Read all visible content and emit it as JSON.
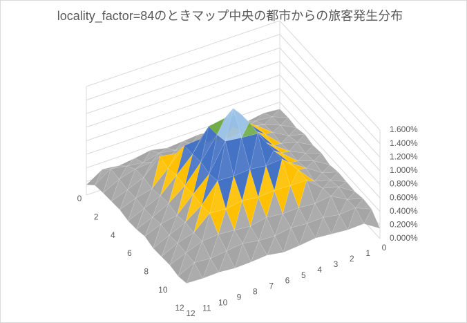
{
  "chart_data": {
    "type": "surface3d",
    "title": "locality_factor=84のときマップ中央の都市からの旅客発生分布",
    "row_labels": [
      0,
      null,
      2,
      null,
      4,
      null,
      6,
      null,
      8,
      null,
      10,
      null,
      12
    ],
    "col_labels": [
      0,
      1,
      2,
      3,
      4,
      5,
      6,
      7,
      8,
      9,
      10,
      11,
      12
    ],
    "zlim": [
      0,
      1.6
    ],
    "zticks": [
      {
        "value": 0,
        "label": "0.000%"
      },
      {
        "value": 0.2,
        "label": "0.200%"
      },
      {
        "value": 0.4,
        "label": "0.400%"
      },
      {
        "value": 0.6,
        "label": "0.600%"
      },
      {
        "value": 0.8,
        "label": "0.800%"
      },
      {
        "value": 1.0,
        "label": "1.000%"
      },
      {
        "value": 1.2,
        "label": "1.200%"
      },
      {
        "value": 1.4,
        "label": "1.400%"
      },
      {
        "value": 1.6,
        "label": "1.600%"
      }
    ],
    "band_colors": [
      "#ed7d31",
      "#a5a5a5",
      "#a5a5a5",
      "#ffc000",
      "#4472c4",
      "#4472c4",
      "#70ad47",
      "#9dc3e6"
    ],
    "values": [
      [
        0.3,
        0.32,
        0.28,
        0.35,
        0.3,
        0.33,
        0.31,
        0.29,
        0.34,
        0.3,
        0.27,
        0.3,
        0.15
      ],
      [
        0.31,
        0.4,
        0.42,
        0.38,
        0.45,
        0.4,
        0.41,
        0.39,
        0.43,
        0.37,
        0.4,
        0.44,
        0.28
      ],
      [
        0.29,
        0.41,
        0.5,
        0.55,
        0.48,
        0.52,
        0.5,
        0.53,
        0.47,
        0.51,
        0.49,
        0.42,
        0.3
      ],
      [
        0.33,
        0.39,
        0.52,
        0.7,
        0.72,
        0.68,
        0.7,
        0.71,
        0.69,
        0.73,
        0.5,
        0.4,
        0.31
      ],
      [
        0.3,
        0.43,
        0.49,
        0.71,
        0.95,
        0.97,
        0.93,
        0.96,
        0.94,
        0.69,
        0.47,
        0.41,
        0.32
      ],
      [
        0.32,
        0.4,
        0.51,
        0.68,
        0.96,
        1.3,
        1.32,
        1.28,
        0.95,
        0.72,
        0.5,
        0.39,
        0.29
      ],
      [
        0.28,
        0.42,
        0.5,
        0.7,
        0.94,
        1.31,
        1.6,
        1.29,
        0.97,
        0.7,
        0.52,
        0.4,
        0.3
      ],
      [
        0.31,
        0.38,
        0.53,
        0.69,
        0.95,
        1.28,
        1.3,
        1.33,
        0.93,
        0.71,
        0.48,
        0.43,
        0.33
      ],
      [
        0.3,
        0.41,
        0.47,
        0.72,
        0.96,
        0.94,
        0.97,
        0.95,
        0.96,
        0.68,
        0.51,
        0.4,
        0.29
      ],
      [
        0.29,
        0.44,
        0.5,
        0.7,
        0.7,
        0.71,
        0.69,
        0.72,
        0.68,
        0.7,
        0.49,
        0.42,
        0.3
      ],
      [
        0.32,
        0.39,
        0.52,
        0.49,
        0.51,
        0.5,
        0.53,
        0.48,
        0.5,
        0.52,
        0.5,
        0.41,
        0.31
      ],
      [
        0.3,
        0.4,
        0.38,
        0.42,
        0.41,
        0.43,
        0.39,
        0.4,
        0.44,
        0.41,
        0.38,
        0.4,
        0.28
      ],
      [
        0.15,
        0.3,
        0.29,
        0.31,
        0.33,
        0.3,
        0.28,
        0.32,
        0.3,
        0.29,
        0.31,
        0.3,
        0.31
      ]
    ]
  }
}
